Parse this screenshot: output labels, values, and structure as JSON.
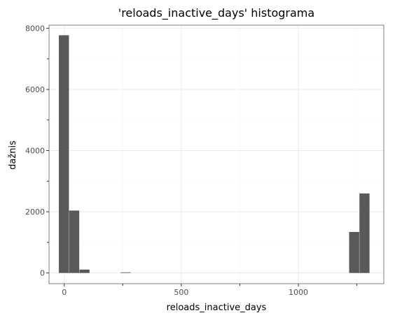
{
  "chart_data": {
    "type": "bar",
    "title": "'reloads_inactive_days' histograma",
    "xlabel": "reloads_inactive_days",
    "ylabel": "dažnis",
    "xlim": [
      -65,
      1365
    ],
    "ylim": [
      -350,
      8100
    ],
    "x_ticks": [
      0,
      500,
      1000
    ],
    "x_tick_labels": [
      "0",
      "500",
      "1000"
    ],
    "x_minor_ticks": [
      250,
      750,
      1250
    ],
    "y_ticks": [
      0,
      2000,
      4000,
      6000,
      8000
    ],
    "y_tick_labels": [
      "0",
      "2000",
      "4000",
      "6000",
      "8000"
    ],
    "y_minor_ticks": [
      1000,
      3000,
      5000,
      7000
    ],
    "bin_width": 46,
    "bins": [
      {
        "x": 0,
        "count": 7770
      },
      {
        "x": 44,
        "count": 2040
      },
      {
        "x": 88,
        "count": 110
      },
      {
        "x": 264,
        "count": 20
      },
      {
        "x": 1240,
        "count": 1340
      },
      {
        "x": 1284,
        "count": 2600
      }
    ],
    "grid": true,
    "bar_color": "#595959"
  }
}
